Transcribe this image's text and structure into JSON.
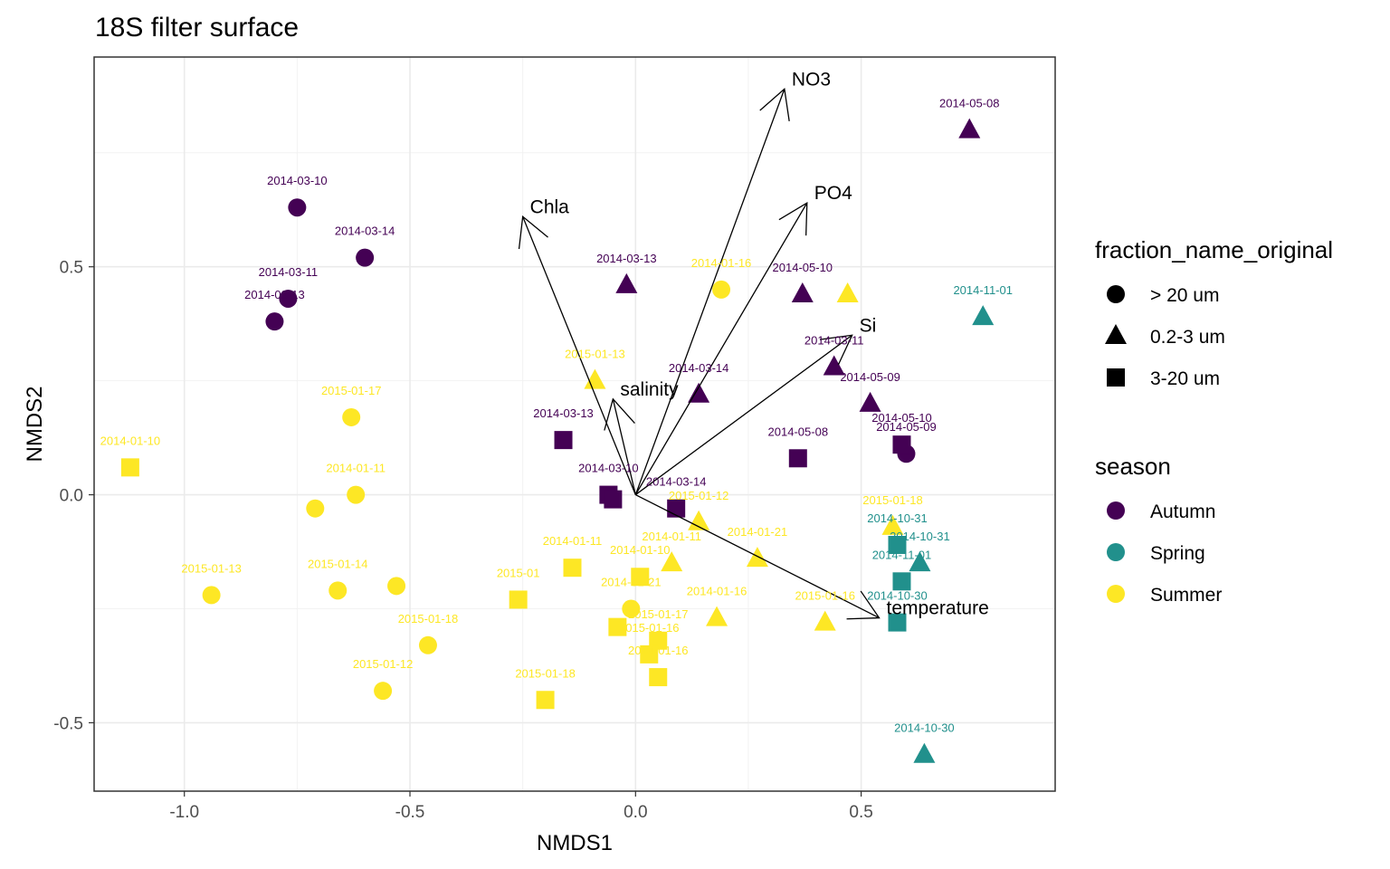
{
  "chart_data": {
    "type": "scatter",
    "title": "18S filter surface",
    "xlabel": "NMDS1",
    "ylabel": "NMDS2",
    "xlim": [
      -1.2,
      0.93
    ],
    "ylim": [
      -0.65,
      0.96
    ],
    "xticks": [
      -1.0,
      -0.5,
      0.0,
      0.5
    ],
    "xtick_labels": [
      "-1.0",
      "-0.5",
      "0.0",
      "0.5"
    ],
    "yticks": [
      -0.5,
      0.0,
      0.5
    ],
    "ytick_labels": [
      "-0.5",
      "0.0",
      "0.5"
    ],
    "grid": true,
    "season_colors": {
      "Autumn": "#440154",
      "Spring": "#21908c",
      "Summer": "#fde725"
    },
    "shapes": {
      "> 20 um": "circle",
      "0.2-3 um": "triangle",
      "3-20 um": "square"
    },
    "legend": {
      "placement": "right",
      "shape_title": "fraction_name_original",
      "shape_items": [
        {
          "label": "> 20 um",
          "shape": "circle"
        },
        {
          "label": "0.2-3 um",
          "shape": "triangle"
        },
        {
          "label": "3-20 um",
          "shape": "square"
        }
      ],
      "color_title": "season",
      "color_items": [
        {
          "label": "Autumn",
          "color": "#440154"
        },
        {
          "label": "Spring",
          "color": "#21908c"
        },
        {
          "label": "Summer",
          "color": "#fde725"
        }
      ]
    },
    "points": [
      {
        "x": -0.75,
        "y": 0.63,
        "fraction": "> 20 um",
        "season": "Autumn",
        "label": "2014-03-10"
      },
      {
        "x": -0.6,
        "y": 0.52,
        "fraction": "> 20 um",
        "season": "Autumn",
        "label": "2014-03-14"
      },
      {
        "x": -0.77,
        "y": 0.43,
        "fraction": "> 20 um",
        "season": "Autumn",
        "label": "2014-03-11"
      },
      {
        "x": -0.8,
        "y": 0.38,
        "fraction": "> 20 um",
        "season": "Autumn",
        "label": "2014-03-13"
      },
      {
        "x": 0.6,
        "y": 0.09,
        "fraction": "> 20 um",
        "season": "Autumn",
        "label": "2014-05-09"
      },
      {
        "x": 0.74,
        "y": 0.8,
        "fraction": "0.2-3 um",
        "season": "Autumn",
        "label": "2014-05-08"
      },
      {
        "x": -0.02,
        "y": 0.46,
        "fraction": "0.2-3 um",
        "season": "Autumn",
        "label": "2014-03-13"
      },
      {
        "x": 0.37,
        "y": 0.44,
        "fraction": "0.2-3 um",
        "season": "Autumn",
        "label": "2014-05-10"
      },
      {
        "x": 0.44,
        "y": 0.28,
        "fraction": "0.2-3 um",
        "season": "Autumn",
        "label": "2014-03-11"
      },
      {
        "x": 0.14,
        "y": 0.22,
        "fraction": "0.2-3 um",
        "season": "Autumn",
        "label": "2014-03-14"
      },
      {
        "x": 0.52,
        "y": 0.2,
        "fraction": "0.2-3 um",
        "season": "Autumn",
        "label": "2014-05-09"
      },
      {
        "x": -0.16,
        "y": 0.12,
        "fraction": "3-20 um",
        "season": "Autumn",
        "label": "2014-03-13"
      },
      {
        "x": 0.36,
        "y": 0.08,
        "fraction": "3-20 um",
        "season": "Autumn",
        "label": "2014-05-08"
      },
      {
        "x": 0.59,
        "y": 0.11,
        "fraction": "3-20 um",
        "season": "Autumn",
        "label": "2014-05-10"
      },
      {
        "x": -0.06,
        "y": 0.0,
        "fraction": "3-20 um",
        "season": "Autumn",
        "label": "2014-03-10"
      },
      {
        "x": -0.05,
        "y": -0.01,
        "fraction": "3-20 um",
        "season": "Autumn",
        "label": ""
      },
      {
        "x": 0.09,
        "y": -0.03,
        "fraction": "3-20 um",
        "season": "Autumn",
        "label": "2014-03-14"
      },
      {
        "x": 0.77,
        "y": 0.39,
        "fraction": "0.2-3 um",
        "season": "Spring",
        "label": "2014-11-01"
      },
      {
        "x": 0.58,
        "y": -0.11,
        "fraction": "3-20 um",
        "season": "Spring",
        "label": "2014-10-31"
      },
      {
        "x": 0.63,
        "y": -0.15,
        "fraction": "0.2-3 um",
        "season": "Spring",
        "label": "2014-10-31"
      },
      {
        "x": 0.59,
        "y": -0.19,
        "fraction": "3-20 um",
        "season": "Spring",
        "label": "2014-11-01"
      },
      {
        "x": 0.58,
        "y": -0.28,
        "fraction": "3-20 um",
        "season": "Spring",
        "label": "2014-10-30"
      },
      {
        "x": 0.64,
        "y": -0.57,
        "fraction": "0.2-3 um",
        "season": "Spring",
        "label": "2014-10-30"
      },
      {
        "x": 0.19,
        "y": 0.45,
        "fraction": "> 20 um",
        "season": "Summer",
        "label": "2014-01-16"
      },
      {
        "x": -0.63,
        "y": 0.17,
        "fraction": "> 20 um",
        "season": "Summer",
        "label": "2015-01-17"
      },
      {
        "x": -0.62,
        "y": 0.0,
        "fraction": "> 20 um",
        "season": "Summer",
        "label": "2014-01-11"
      },
      {
        "x": -0.71,
        "y": -0.03,
        "fraction": "> 20 um",
        "season": "Summer",
        "label": ""
      },
      {
        "x": -0.94,
        "y": -0.22,
        "fraction": "> 20 um",
        "season": "Summer",
        "label": "2015-01-13"
      },
      {
        "x": -0.66,
        "y": -0.21,
        "fraction": "> 20 um",
        "season": "Summer",
        "label": "2015-01-14"
      },
      {
        "x": -0.53,
        "y": -0.2,
        "fraction": "> 20 um",
        "season": "Summer",
        "label": ""
      },
      {
        "x": -0.46,
        "y": -0.33,
        "fraction": "> 20 um",
        "season": "Summer",
        "label": "2015-01-18"
      },
      {
        "x": -0.56,
        "y": -0.43,
        "fraction": "> 20 um",
        "season": "Summer",
        "label": "2015-01-12"
      },
      {
        "x": -0.01,
        "y": -0.25,
        "fraction": "> 20 um",
        "season": "Summer",
        "label": "2014-01-21"
      },
      {
        "x": 0.47,
        "y": 0.44,
        "fraction": "0.2-3 um",
        "season": "Summer",
        "label": ""
      },
      {
        "x": -0.09,
        "y": 0.25,
        "fraction": "0.2-3 um",
        "season": "Summer",
        "label": "2015-01-13"
      },
      {
        "x": 0.57,
        "y": -0.07,
        "fraction": "0.2-3 um",
        "season": "Summer",
        "label": "2015-01-18"
      },
      {
        "x": 0.14,
        "y": -0.06,
        "fraction": "0.2-3 um",
        "season": "Summer",
        "label": "2015-01-12"
      },
      {
        "x": 0.08,
        "y": -0.15,
        "fraction": "0.2-3 um",
        "season": "Summer",
        "label": "2014-01-11"
      },
      {
        "x": 0.27,
        "y": -0.14,
        "fraction": "0.2-3 um",
        "season": "Summer",
        "label": "2014-01-21"
      },
      {
        "x": 0.18,
        "y": -0.27,
        "fraction": "0.2-3 um",
        "season": "Summer",
        "label": "2014-01-16"
      },
      {
        "x": 0.42,
        "y": -0.28,
        "fraction": "0.2-3 um",
        "season": "Summer",
        "label": "2015-01-16"
      },
      {
        "x": -1.12,
        "y": 0.06,
        "fraction": "3-20 um",
        "season": "Summer",
        "label": "2014-01-10"
      },
      {
        "x": -0.14,
        "y": -0.16,
        "fraction": "3-20 um",
        "season": "Summer",
        "label": "2014-01-11"
      },
      {
        "x": 0.01,
        "y": -0.18,
        "fraction": "3-20 um",
        "season": "Summer",
        "label": "2014-01-10"
      },
      {
        "x": -0.26,
        "y": -0.23,
        "fraction": "3-20 um",
        "season": "Summer",
        "label": "2015-01"
      },
      {
        "x": -0.04,
        "y": -0.29,
        "fraction": "3-20 um",
        "season": "Summer",
        "label": ""
      },
      {
        "x": 0.05,
        "y": -0.32,
        "fraction": "3-20 um",
        "season": "Summer",
        "label": "2015-01-17"
      },
      {
        "x": 0.03,
        "y": -0.35,
        "fraction": "3-20 um",
        "season": "Summer",
        "label": "2015-01-16"
      },
      {
        "x": 0.05,
        "y": -0.4,
        "fraction": "3-20 um",
        "season": "Summer",
        "label": "2014-01-16"
      },
      {
        "x": -0.2,
        "y": -0.45,
        "fraction": "3-20 um",
        "season": "Summer",
        "label": "2015-01-18"
      }
    ],
    "vectors": [
      {
        "name": "NO3",
        "x": 0.33,
        "y": 0.89
      },
      {
        "name": "PO4",
        "x": 0.38,
        "y": 0.64
      },
      {
        "name": "Chla",
        "x": -0.25,
        "y": 0.61
      },
      {
        "name": "Si",
        "x": 0.48,
        "y": 0.35
      },
      {
        "name": "salinity",
        "x": -0.05,
        "y": 0.21
      },
      {
        "name": "temperature",
        "x": 0.54,
        "y": -0.27
      }
    ]
  }
}
